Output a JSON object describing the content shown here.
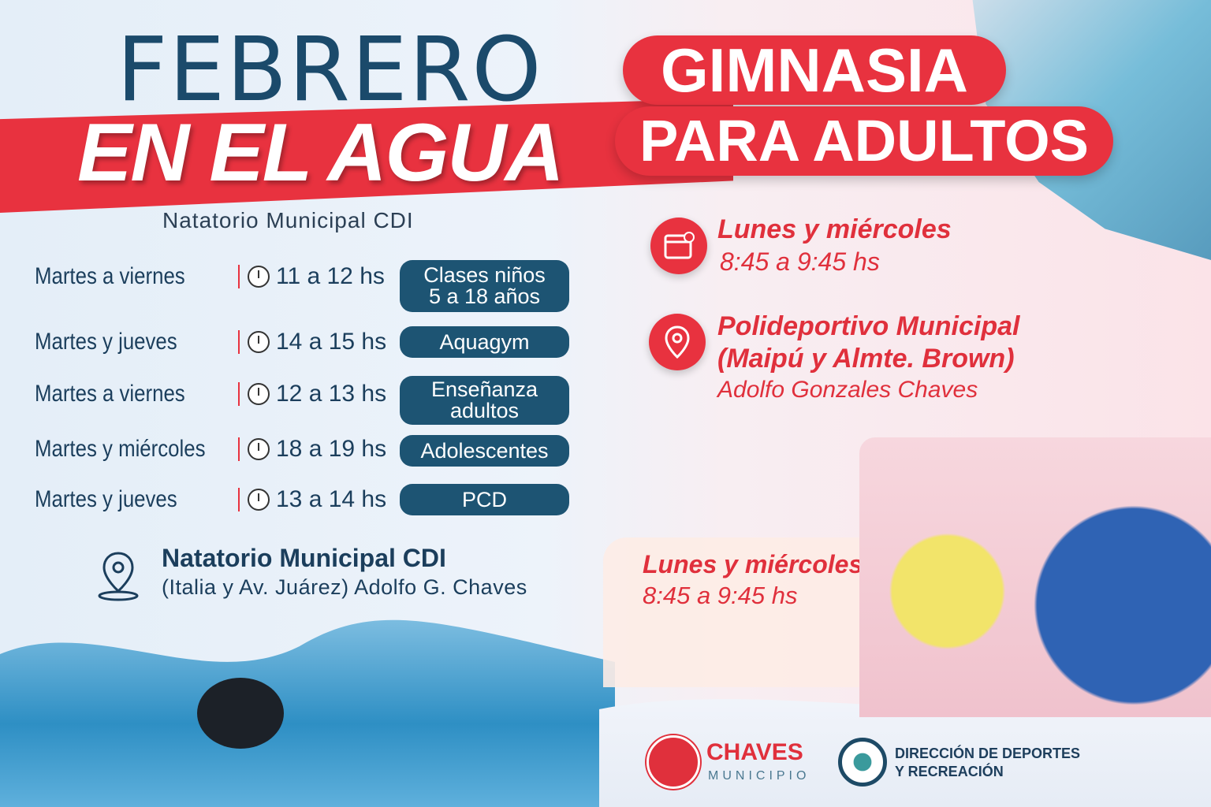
{
  "left": {
    "title_line1": "FEBRERO",
    "title_line2": "EN EL AGUA",
    "subtitle": "Natatorio Municipal CDI",
    "schedule": [
      {
        "days": "Martes a viernes",
        "time": "11 a 12 hs",
        "activity_line1": "Clases niños",
        "activity_line2": "5 a 18 años"
      },
      {
        "days": "Martes y jueves",
        "time": "14 a 15 hs",
        "activity_line1": "Aquagym",
        "activity_line2": ""
      },
      {
        "days": "Martes a viernes",
        "time": "12 a 13 hs",
        "activity_line1": "Enseñanza",
        "activity_line2": "adultos"
      },
      {
        "days": "Martes y miércoles",
        "time": "18 a 19 hs",
        "activity_line1": "Adolescentes",
        "activity_line2": ""
      },
      {
        "days": "Martes y jueves",
        "time": "13 a 14 hs",
        "activity_line1": "PCD",
        "activity_line2": ""
      }
    ],
    "location_name": "Natatorio Municipal CDI",
    "location_address": "(Italia y Av. Juárez) Adolfo G. Chaves"
  },
  "right": {
    "title_line1": "GIMNASIA",
    "title_line2": "PARA ADULTOS",
    "days": "Lunes y miércoles",
    "time": "8:45 a 9:45 hs",
    "venue": "Polideportivo Municipal",
    "venue_address": "(Maipú y Almte. Brown)",
    "city": "Adolfo Gonzales Chaves",
    "card_days": "Lunes y miércoles",
    "card_time": "8:45 a 9:45 hs"
  },
  "footer": {
    "municipio_name": "CHAVES",
    "municipio_sub": "MUNICIPIO",
    "direccion_line1": "DIRECCIÓN DE DEPORTES",
    "direccion_line2": "Y RECREACIÓN"
  },
  "colors": {
    "red": "#e8323f",
    "navy": "#1d5473",
    "text": "#1b3e5c"
  },
  "icons": [
    "clock-icon",
    "location-pin-icon",
    "calendar-icon"
  ]
}
